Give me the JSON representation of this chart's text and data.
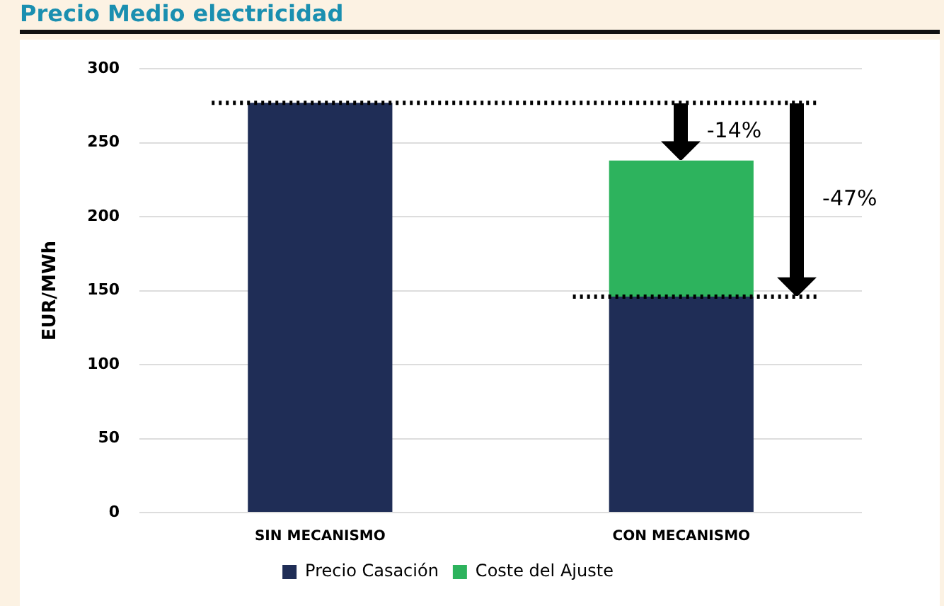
{
  "chart_data": {
    "type": "bar",
    "title": "Precio Medio electricidad",
    "ylabel": "EUR/MWh",
    "categories": [
      "SIN MECANISMO",
      "CON MECANISMO"
    ],
    "series": [
      {
        "name": "Precio Casación",
        "color": "#1f2d56",
        "values": [
          277,
          146
        ]
      },
      {
        "name": "Coste del Ajuste",
        "color": "#2db35d",
        "values": [
          null,
          92
        ]
      }
    ],
    "stacked": true,
    "ylim": [
      0,
      300
    ],
    "yticks": [
      0,
      50,
      100,
      150,
      200,
      250,
      300
    ],
    "grid": "y",
    "legend": "bottom",
    "ref_lines": [
      {
        "axis": "y",
        "value": 277,
        "line_style": "dotted",
        "color": "#000000"
      },
      {
        "axis": "y",
        "value": 146,
        "line_style": "dotted",
        "color": "#000000"
      }
    ],
    "annotations": [
      {
        "text": "-14%",
        "x": "CON MECANISMO",
        "y": 238
      },
      "-47%"
    ]
  }
}
